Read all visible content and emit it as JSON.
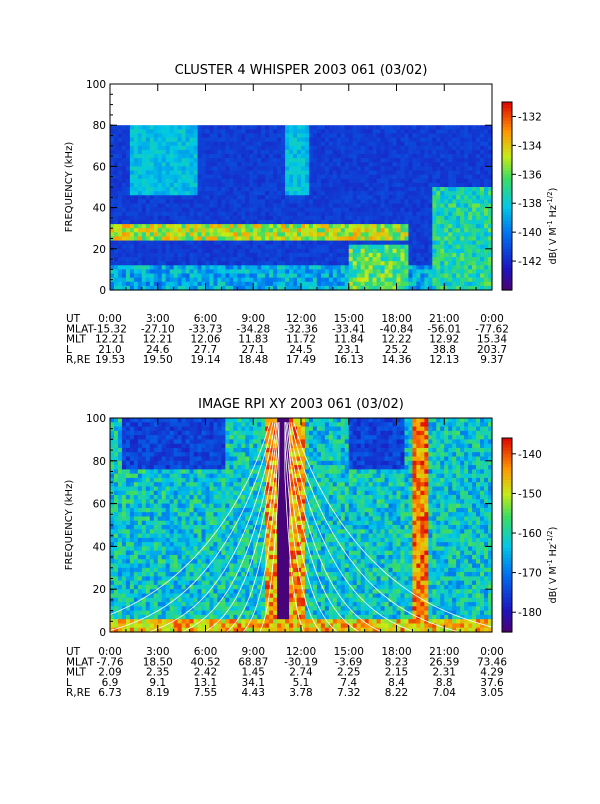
{
  "chart_data": [
    {
      "type": "heatmap",
      "title": "CLUSTER 4 WHISPER 2003 061 (03/02)",
      "ylabel": "FREQUENCY (kHz)",
      "ylim": [
        0,
        100
      ],
      "yticks": [
        "0",
        "20",
        "40",
        "60",
        "80",
        "100"
      ],
      "data_ylim": [
        0,
        80
      ],
      "colorbar": {
        "label": "dB( V M",
        "sup1": "-1",
        "label2": " Hz",
        "sup2": "-1/2",
        "label3": ")",
        "range": [
          -144,
          -131
        ],
        "ticks": [
          "-132",
          "-134",
          "-136",
          "-138",
          "-140",
          "-142"
        ],
        "tick_values": [
          -132,
          -134,
          -136,
          -138,
          -140,
          -142
        ]
      },
      "xticks": [
        "0:00",
        "3:00",
        "6:00",
        "9:00",
        "12:00",
        "15:00",
        "18:00",
        "21:00",
        "0:00"
      ],
      "ephemeris": {
        "labels": [
          "UT",
          "MLAT",
          "MLT",
          "L",
          "R,RE"
        ],
        "rows": [
          [
            "0:00",
            "3:00",
            "6:00",
            "9:00",
            "12:00",
            "15:00",
            "18:00",
            "21:00",
            "0:00"
          ],
          [
            "-15.32",
            "-27.10",
            "-33.73",
            "-34.28",
            "-32.36",
            "-33.41",
            "-40.84",
            "-56.01",
            "-77.62"
          ],
          [
            "12.21",
            "12.21",
            "12.06",
            "11.83",
            "11.72",
            "11.84",
            "12.22",
            "12.92",
            "15.34"
          ],
          [
            "21.0",
            "24.6",
            "27.7",
            "27.1",
            "24.5",
            "23.1",
            "25.2",
            "38.8",
            "203.7"
          ],
          [
            "19.53",
            "19.50",
            "19.14",
            "18.48",
            "17.49",
            "16.13",
            "14.36",
            "12.13",
            "9.37"
          ]
        ]
      }
    },
    {
      "type": "heatmap",
      "title": "IMAGE RPI XY 2003 061 (03/02)",
      "ylabel": "FREQUENCY (kHz)",
      "ylim": [
        0,
        100
      ],
      "yticks": [
        "0",
        "20",
        "40",
        "60",
        "80",
        "100"
      ],
      "data_ylim": [
        0,
        100
      ],
      "colorbar": {
        "label": "dB( V M",
        "sup1": "-1",
        "label2": " Hz",
        "sup2": "-1/2",
        "label3": ")",
        "range": [
          -185,
          -136
        ],
        "ticks": [
          "-140",
          "-150",
          "-160",
          "-170",
          "-180"
        ],
        "tick_values": [
          -140,
          -150,
          -160,
          -170,
          -180
        ]
      },
      "xticks": [
        "0:00",
        "3:00",
        "6:00",
        "9:00",
        "12:00",
        "15:00",
        "18:00",
        "21:00",
        "0:00"
      ],
      "ephemeris": {
        "labels": [
          "UT",
          "MLAT",
          "MLT",
          "L",
          "R,RE"
        ],
        "rows": [
          [
            "0:00",
            "3:00",
            "6:00",
            "9:00",
            "12:00",
            "15:00",
            "18:00",
            "21:00",
            "0:00"
          ],
          [
            "-7.76",
            "18.50",
            "40.52",
            "68.87",
            "-30.19",
            "-3.69",
            "8.23",
            "26.59",
            "73.46"
          ],
          [
            "2.09",
            "2.35",
            "2.42",
            "1.45",
            "2.74",
            "2.25",
            "2.15",
            "2.31",
            "4.29"
          ],
          [
            "6.9",
            "9.1",
            "13.1",
            "34.1",
            "5.1",
            "7.4",
            "8.4",
            "8.8",
            "37.6"
          ],
          [
            "6.73",
            "8.19",
            "7.55",
            "4.43",
            "3.78",
            "7.32",
            "8.22",
            "7.04",
            "3.05"
          ]
        ]
      }
    }
  ]
}
